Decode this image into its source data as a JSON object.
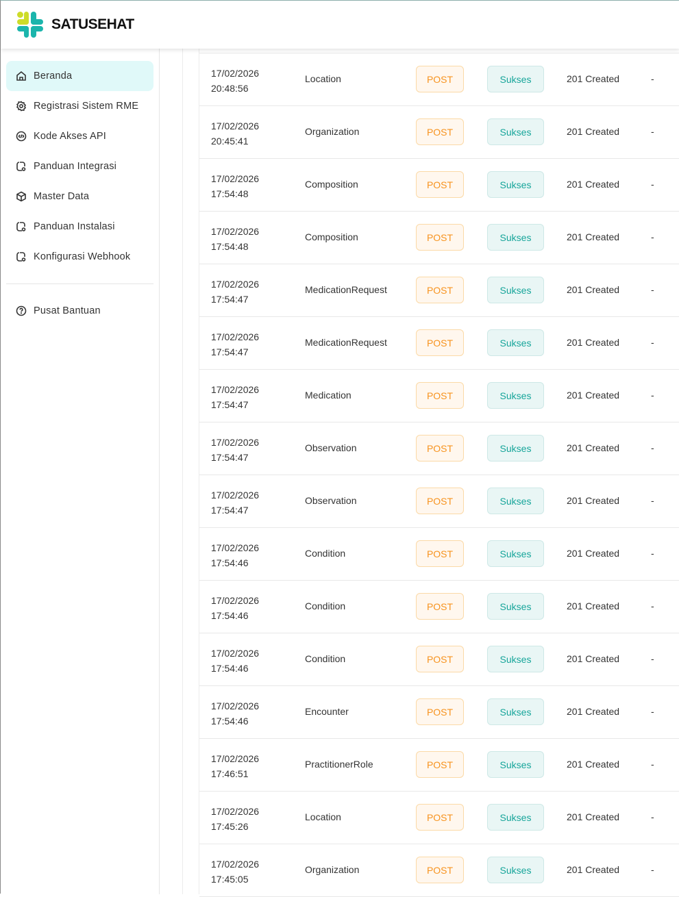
{
  "header": {
    "brand": "SATUSEHAT",
    "colors": {
      "lime": "#cddc29",
      "teal": "#1bb5ac"
    }
  },
  "sidebar": {
    "items": [
      {
        "label": "Beranda",
        "icon": "home-icon",
        "active": true
      },
      {
        "label": "Registrasi Sistem RME",
        "icon": "gear-icon"
      },
      {
        "label": "Kode Akses API",
        "icon": "code-icon"
      },
      {
        "label": "Panduan Integrasi",
        "icon": "guide-icon"
      },
      {
        "label": "Master Data",
        "icon": "cube-icon"
      },
      {
        "label": "Panduan Instalasi",
        "icon": "guide-icon"
      },
      {
        "label": "Konfigurasi Webhook",
        "icon": "guide-icon"
      }
    ],
    "help": {
      "label": "Pusat Bantuan",
      "icon": "help-icon"
    }
  },
  "table": {
    "rows": [
      {
        "date": "17/02/2026",
        "time": "20:48:56",
        "resource": "Location",
        "method": "POST",
        "status": "Sukses",
        "code": "201 Created",
        "note": "-"
      },
      {
        "date": "17/02/2026",
        "time": "20:45:41",
        "resource": "Organization",
        "method": "POST",
        "status": "Sukses",
        "code": "201 Created",
        "note": "-"
      },
      {
        "date": "17/02/2026",
        "time": "17:54:48",
        "resource": "Composition",
        "method": "POST",
        "status": "Sukses",
        "code": "201 Created",
        "note": "-"
      },
      {
        "date": "17/02/2026",
        "time": "17:54:48",
        "resource": "Composition",
        "method": "POST",
        "status": "Sukses",
        "code": "201 Created",
        "note": "-"
      },
      {
        "date": "17/02/2026",
        "time": "17:54:47",
        "resource": "MedicationRequest",
        "method": "POST",
        "status": "Sukses",
        "code": "201 Created",
        "note": "-"
      },
      {
        "date": "17/02/2026",
        "time": "17:54:47",
        "resource": "MedicationRequest",
        "method": "POST",
        "status": "Sukses",
        "code": "201 Created",
        "note": "-"
      },
      {
        "date": "17/02/2026",
        "time": "17:54:47",
        "resource": "Medication",
        "method": "POST",
        "status": "Sukses",
        "code": "201 Created",
        "note": "-"
      },
      {
        "date": "17/02/2026",
        "time": "17:54:47",
        "resource": "Observation",
        "method": "POST",
        "status": "Sukses",
        "code": "201 Created",
        "note": "-"
      },
      {
        "date": "17/02/2026",
        "time": "17:54:47",
        "resource": "Observation",
        "method": "POST",
        "status": "Sukses",
        "code": "201 Created",
        "note": "-"
      },
      {
        "date": "17/02/2026",
        "time": "17:54:46",
        "resource": "Condition",
        "method": "POST",
        "status": "Sukses",
        "code": "201 Created",
        "note": "-"
      },
      {
        "date": "17/02/2026",
        "time": "17:54:46",
        "resource": "Condition",
        "method": "POST",
        "status": "Sukses",
        "code": "201 Created",
        "note": "-"
      },
      {
        "date": "17/02/2026",
        "time": "17:54:46",
        "resource": "Condition",
        "method": "POST",
        "status": "Sukses",
        "code": "201 Created",
        "note": "-"
      },
      {
        "date": "17/02/2026",
        "time": "17:54:46",
        "resource": "Encounter",
        "method": "POST",
        "status": "Sukses",
        "code": "201 Created",
        "note": "-"
      },
      {
        "date": "17/02/2026",
        "time": "17:46:51",
        "resource": "PractitionerRole",
        "method": "POST",
        "status": "Sukses",
        "code": "201 Created",
        "note": "-"
      },
      {
        "date": "17/02/2026",
        "time": "17:45:26",
        "resource": "Location",
        "method": "POST",
        "status": "Sukses",
        "code": "201 Created",
        "note": "-"
      },
      {
        "date": "17/02/2026",
        "time": "17:45:05",
        "resource": "Organization",
        "method": "POST",
        "status": "Sukses",
        "code": "201 Created",
        "note": "-"
      }
    ]
  }
}
